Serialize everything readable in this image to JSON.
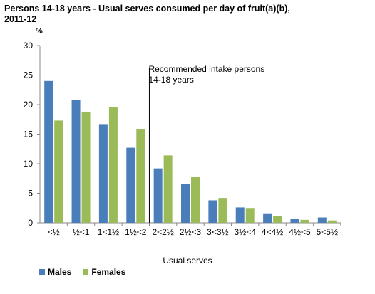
{
  "title": "Persons 14-18 years - Usual serves consumed per day of fruit(a)(b), 2011-12",
  "chart_data": {
    "type": "bar",
    "title": "Persons 14-18 years - Usual serves consumed per day of fruit(a)(b), 2011-12",
    "ylabel": "%",
    "xlabel": "Usual serves",
    "ylim": [
      0,
      30
    ],
    "yticks": [
      0,
      5,
      10,
      15,
      20,
      25,
      30
    ],
    "categories": [
      "<½",
      "½<1",
      "1<1½",
      "1½<2",
      "2<2½",
      "2½<3",
      "3<3½",
      "3½<4",
      "4<4½",
      "4½<5",
      "5<5½"
    ],
    "series": [
      {
        "name": "Males",
        "color": "#4a7ebb",
        "values": [
          24.0,
          20.8,
          16.7,
          12.7,
          9.2,
          6.6,
          3.8,
          2.6,
          1.6,
          0.7,
          0.9
        ]
      },
      {
        "name": "Females",
        "color": "#9bbb59",
        "values": [
          17.3,
          18.8,
          19.6,
          15.9,
          11.4,
          7.8,
          4.2,
          2.5,
          1.2,
          0.5,
          0.4
        ]
      }
    ],
    "annotation": {
      "text_line1": "Recommended intake persons",
      "text_line2": "14-18 years",
      "after_category_index": 3
    },
    "grid": false,
    "legend": "bottom-left"
  }
}
